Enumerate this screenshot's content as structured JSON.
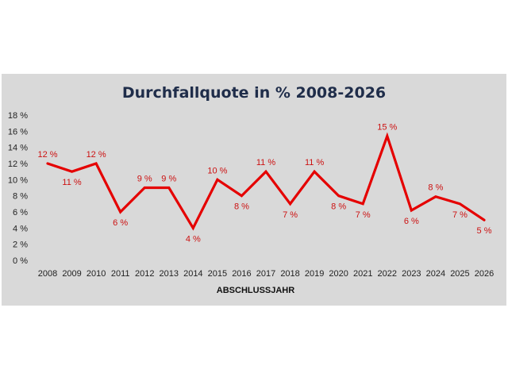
{
  "chart_data": {
    "type": "line",
    "title": "Durchfallquote in % 2008-2026",
    "xlabel": "ABSCHLUSSJAHR",
    "ylabel": "",
    "ylim": [
      0,
      18
    ],
    "y_ticks": [
      "0 %",
      "2 %",
      "4 %",
      "6 %",
      "8 %",
      "10 %",
      "12 %",
      "14 %",
      "16 %",
      "18 %"
    ],
    "categories": [
      "2008",
      "2009",
      "2010",
      "2011",
      "2012",
      "2013",
      "2014",
      "2015",
      "2016",
      "2017",
      "2018",
      "2019",
      "2020",
      "2021",
      "2022",
      "2023",
      "2024",
      "2025",
      "2026"
    ],
    "series": [
      {
        "values": [
          12,
          11,
          12,
          6,
          9,
          9,
          4,
          10,
          8,
          11,
          7,
          11,
          8,
          7,
          15.4,
          6.2,
          7.9,
          7,
          5
        ],
        "labels": [
          "12 %",
          "11 %",
          "12 %",
          "6 %",
          "9 %",
          "9 %",
          "4 %",
          "10 %",
          "8 %",
          "11 %",
          "7 %",
          "11 %",
          "8 %",
          "7 %",
          "15 %",
          "6 %",
          "8 %",
          "7 %",
          "5 %"
        ],
        "color": "#e50000"
      }
    ],
    "grid": false,
    "legend": "none",
    "background": "#d9d9d9"
  }
}
